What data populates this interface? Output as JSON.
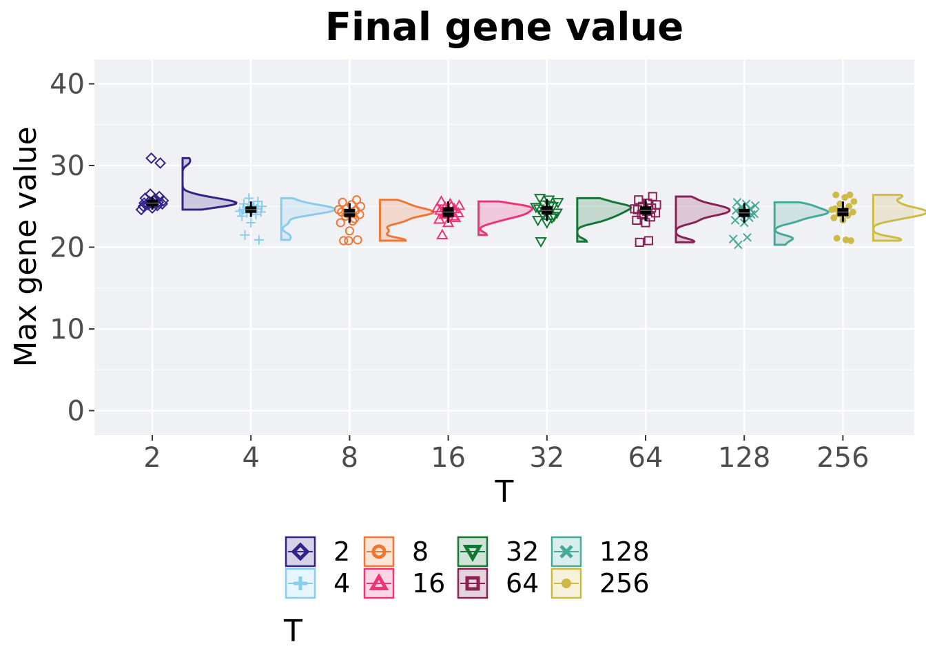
{
  "chart_data": {
    "type": "raincloud",
    "title": "Final gene value",
    "xlabel": "T",
    "ylabel": "Max gene value",
    "ylim": [
      -3,
      43
    ],
    "yticks": [
      0,
      10,
      20,
      30,
      40
    ],
    "categories": [
      "2",
      "4",
      "8",
      "16",
      "32",
      "64",
      "128",
      "256"
    ],
    "legend": {
      "title": "T",
      "position": "bottom"
    },
    "grid": true,
    "series": [
      {
        "name": "2",
        "color": "#332288",
        "marker": "diamond-open",
        "median": 25.4,
        "q1": 25.0,
        "q3": 25.8,
        "whisker_low": 24.6,
        "whisker_high": 26.2,
        "points": [
          24.8,
          25.0,
          25.1,
          25.2,
          25.3,
          25.4,
          25.4,
          25.5,
          25.6,
          25.7,
          25.8,
          26.0,
          26.2,
          26.5,
          24.6,
          25.9,
          25.2,
          30.3,
          30.9
        ]
      },
      {
        "name": "4",
        "color": "#88CCEE",
        "marker": "plus",
        "median": 24.6,
        "q1": 24.2,
        "q3": 25.0,
        "whisker_low": 23.7,
        "whisker_high": 25.6,
        "points": [
          23.0,
          23.8,
          24.0,
          24.2,
          24.3,
          24.5,
          24.6,
          24.7,
          24.8,
          25.0,
          25.1,
          25.3,
          25.6,
          26.0,
          24.4,
          24.9,
          21.5,
          20.9
        ]
      },
      {
        "name": "8",
        "color": "#EE7733",
        "marker": "circle-open",
        "median": 24.2,
        "q1": 23.7,
        "q3": 24.7,
        "whisker_low": 23.0,
        "whisker_high": 25.4,
        "points": [
          22.0,
          23.0,
          23.5,
          23.8,
          24.0,
          24.2,
          24.3,
          24.5,
          24.7,
          25.0,
          25.2,
          25.5,
          25.8,
          24.1,
          24.6,
          23.2,
          20.8,
          20.9,
          20.8
        ]
      },
      {
        "name": "16",
        "color": "#EE3377",
        "marker": "triangle-open",
        "median": 24.3,
        "q1": 23.7,
        "q3": 24.9,
        "whisker_low": 23.0,
        "whisker_high": 25.6,
        "points": [
          23.0,
          23.4,
          23.8,
          24.0,
          24.2,
          24.4,
          24.5,
          24.7,
          24.9,
          25.1,
          25.3,
          25.6,
          23.6,
          24.1,
          24.8,
          25.0,
          21.5
        ]
      },
      {
        "name": "32",
        "color": "#117733",
        "marker": "triangle-down",
        "median": 24.5,
        "q1": 24.0,
        "q3": 25.0,
        "whisker_low": 23.2,
        "whisker_high": 25.9,
        "points": [
          23.0,
          23.3,
          23.6,
          24.0,
          24.2,
          24.5,
          24.7,
          25.0,
          25.2,
          25.5,
          25.8,
          26.0,
          23.8,
          24.4,
          24.9,
          25.1,
          20.7
        ]
      },
      {
        "name": "64",
        "color": "#882255",
        "marker": "square-open",
        "median": 24.5,
        "q1": 24.0,
        "q3": 25.0,
        "whisker_low": 23.2,
        "whisker_high": 25.8,
        "points": [
          23.0,
          23.3,
          23.7,
          24.0,
          24.2,
          24.4,
          24.6,
          24.8,
          25.0,
          25.2,
          25.4,
          25.8,
          26.2,
          24.1,
          24.7,
          20.8,
          20.6
        ]
      },
      {
        "name": "128",
        "color": "#44AA99",
        "marker": "cross",
        "median": 24.2,
        "q1": 23.7,
        "q3": 24.7,
        "whisker_low": 23.0,
        "whisker_high": 25.4,
        "points": [
          23.0,
          23.3,
          23.6,
          23.9,
          24.1,
          24.3,
          24.5,
          24.7,
          24.9,
          25.1,
          25.3,
          25.5,
          24.0,
          24.4,
          21.0,
          21.2,
          20.3
        ]
      },
      {
        "name": "256",
        "color": "#CCBB44",
        "marker": "circle-filled",
        "median": 24.3,
        "q1": 23.8,
        "q3": 24.8,
        "whisker_low": 23.1,
        "whisker_high": 25.6,
        "points": [
          23.3,
          23.6,
          23.9,
          24.1,
          24.3,
          24.5,
          24.7,
          25.0,
          25.3,
          25.6,
          26.1,
          26.4,
          26.4,
          24.0,
          24.6,
          20.9,
          21.1,
          20.8
        ]
      }
    ]
  }
}
